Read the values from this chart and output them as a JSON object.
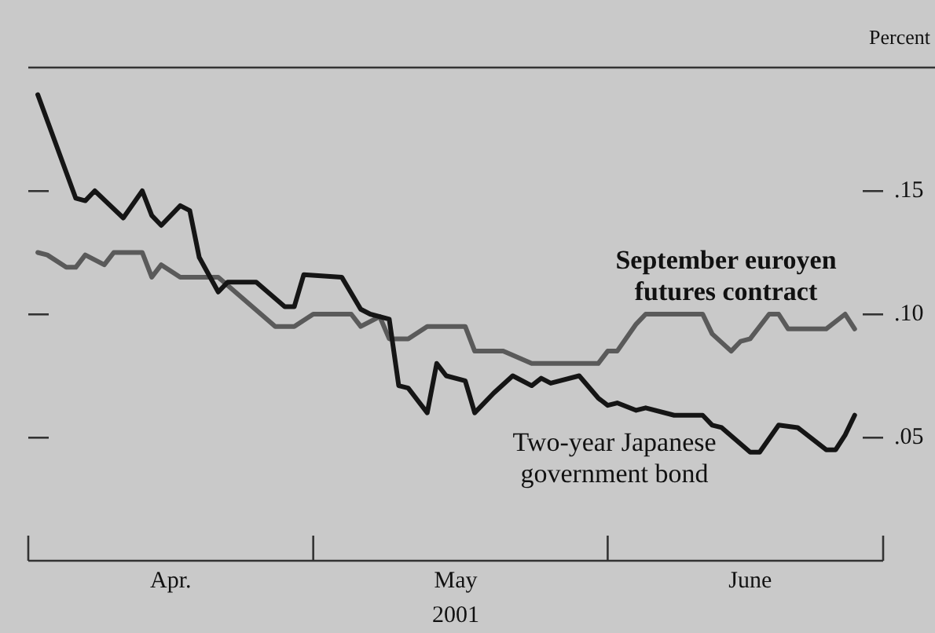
{
  "chart_data": {
    "type": "line",
    "ylabel": "Percent",
    "xlabel": "2001",
    "xlim": [
      "2001-04-01",
      "2001-06-30"
    ],
    "xticks": [
      {
        "value": "2001-04-01",
        "label": null
      },
      {
        "value": "2001-04-16",
        "label": "Apr."
      },
      {
        "value": "2001-05-01",
        "label": null
      },
      {
        "value": "2001-05-16",
        "label": "May"
      },
      {
        "value": "2001-06-01",
        "label": null
      },
      {
        "value": "2001-06-16",
        "label": "June"
      },
      {
        "value": "2001-06-30",
        "label": null
      }
    ],
    "ylim": [
      0,
      0.2
    ],
    "yticks": [
      {
        "value": 0.05,
        "label": ".05"
      },
      {
        "value": 0.1,
        "label": ".10"
      },
      {
        "value": 0.15,
        "label": ".15"
      }
    ],
    "grid": false,
    "legend": false,
    "marker": "none",
    "line_style": "solid",
    "series": [
      {
        "name": "September euroyen futures contract",
        "color": "#5a5a5a",
        "x": [
          "2001-04-02",
          "2001-04-03",
          "2001-04-05",
          "2001-04-06",
          "2001-04-07",
          "2001-04-09",
          "2001-04-10",
          "2001-04-13",
          "2001-04-14",
          "2001-04-15",
          "2001-04-17",
          "2001-04-21",
          "2001-04-27",
          "2001-04-29",
          "2001-05-01",
          "2001-05-05",
          "2001-05-06",
          "2001-05-08",
          "2001-05-09",
          "2001-05-11",
          "2001-05-13",
          "2001-05-17",
          "2001-05-18",
          "2001-05-21",
          "2001-05-24",
          "2001-05-31",
          "2001-06-01",
          "2001-06-02",
          "2001-06-04",
          "2001-06-05",
          "2001-06-11",
          "2001-06-12",
          "2001-06-14",
          "2001-06-15",
          "2001-06-16",
          "2001-06-18",
          "2001-06-19",
          "2001-06-20",
          "2001-06-24",
          "2001-06-26",
          "2001-06-27"
        ],
        "values": [
          0.125,
          0.124,
          0.119,
          0.119,
          0.124,
          0.12,
          0.125,
          0.125,
          0.115,
          0.12,
          0.115,
          0.115,
          0.095,
          0.095,
          0.1,
          0.1,
          0.095,
          0.099,
          0.09,
          0.09,
          0.095,
          0.095,
          0.085,
          0.085,
          0.08,
          0.08,
          0.085,
          0.085,
          0.096,
          0.1,
          0.1,
          0.092,
          0.085,
          0.089,
          0.09,
          0.1,
          0.1,
          0.094,
          0.094,
          0.1,
          0.094
        ]
      },
      {
        "name": "Two-year Japanese government bond",
        "color": "#151515",
        "x": [
          "2001-04-02",
          "2001-04-06",
          "2001-04-07",
          "2001-04-08",
          "2001-04-11",
          "2001-04-13",
          "2001-04-14",
          "2001-04-15",
          "2001-04-17",
          "2001-04-18",
          "2001-04-19",
          "2001-04-21",
          "2001-04-22",
          "2001-04-25",
          "2001-04-28",
          "2001-04-29",
          "2001-04-30",
          "2001-05-04",
          "2001-05-06",
          "2001-05-07",
          "2001-05-09",
          "2001-05-10",
          "2001-05-11",
          "2001-05-13",
          "2001-05-14",
          "2001-05-15",
          "2001-05-17",
          "2001-05-18",
          "2001-05-20",
          "2001-05-22",
          "2001-05-24",
          "2001-05-25",
          "2001-05-26",
          "2001-05-29",
          "2001-05-31",
          "2001-06-01",
          "2001-06-02",
          "2001-06-04",
          "2001-06-05",
          "2001-06-08",
          "2001-06-11",
          "2001-06-12",
          "2001-06-13",
          "2001-06-16",
          "2001-06-17",
          "2001-06-19",
          "2001-06-21",
          "2001-06-24",
          "2001-06-25",
          "2001-06-26",
          "2001-06-27"
        ],
        "values": [
          0.189,
          0.147,
          0.146,
          0.15,
          0.139,
          0.15,
          0.14,
          0.136,
          0.144,
          0.142,
          0.123,
          0.109,
          0.113,
          0.113,
          0.103,
          0.103,
          0.116,
          0.115,
          0.102,
          0.1,
          0.098,
          0.071,
          0.07,
          0.06,
          0.08,
          0.075,
          0.073,
          0.06,
          0.068,
          0.075,
          0.071,
          0.074,
          0.072,
          0.075,
          0.066,
          0.063,
          0.064,
          0.061,
          0.062,
          0.059,
          0.059,
          0.055,
          0.054,
          0.044,
          0.044,
          0.055,
          0.054,
          0.045,
          0.045,
          0.051,
          0.059
        ]
      }
    ]
  }
}
